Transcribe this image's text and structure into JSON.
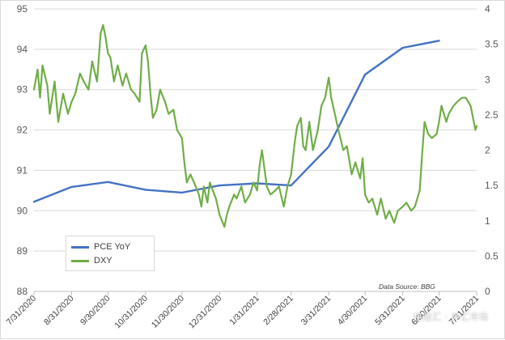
{
  "chart_data": {
    "type": "line",
    "title": "",
    "xlabel": "",
    "ylabel_left": "",
    "ylabel_right": "",
    "x_tick_labels": [
      "7/31/2020",
      "8/31/2020",
      "9/30/2020",
      "10/31/2020",
      "11/30/2020",
      "12/31/2020",
      "1/31/2021",
      "2/28/2021",
      "3/31/2021",
      "4/30/2021",
      "5/31/2021",
      "6/30/2021",
      "7/31/2021"
    ],
    "y_left": {
      "min": 88,
      "max": 95,
      "ticks": [
        "88",
        "89",
        "90",
        "91",
        "92",
        "93",
        "94",
        "95"
      ]
    },
    "y_right": {
      "min": 0,
      "max": 4,
      "ticks": [
        "0",
        "0.5",
        "1",
        "1.5",
        "2",
        "2.5",
        "3",
        "3.5",
        "4"
      ]
    },
    "grid": "horizontal",
    "legend_position": "bottom-left",
    "series": [
      {
        "name": "PCE YoY",
        "axis": "right",
        "color": "#4472c4",
        "points": [
          [
            "7/31/2020",
            1.27
          ],
          [
            "8/31/2020",
            1.48
          ],
          [
            "9/30/2020",
            1.55
          ],
          [
            "10/31/2020",
            1.44
          ],
          [
            "11/30/2020",
            1.4
          ],
          [
            "12/31/2020",
            1.5
          ],
          [
            "1/31/2021",
            1.53
          ],
          [
            "2/28/2021",
            1.5
          ],
          [
            "3/31/2021",
            2.05
          ],
          [
            "4/30/2021",
            3.07
          ],
          [
            "5/31/2021",
            3.45
          ],
          [
            "6/30/2021",
            3.55
          ]
        ]
      },
      {
        "name": "DXY",
        "axis": "left",
        "color": "#70ad47",
        "points": [
          [
            "7/31/2020",
            93.0
          ],
          [
            "8/3/2020",
            93.5
          ],
          [
            "8/5/2020",
            92.8
          ],
          [
            "8/7/2020",
            93.6
          ],
          [
            "8/11/2020",
            93.1
          ],
          [
            "8/13/2020",
            92.4
          ],
          [
            "8/17/2020",
            93.2
          ],
          [
            "8/20/2020",
            92.2
          ],
          [
            "8/24/2020",
            92.9
          ],
          [
            "8/28/2020",
            92.4
          ],
          [
            "8/31/2020",
            92.7
          ],
          [
            "9/3/2020",
            92.9
          ],
          [
            "9/7/2020",
            93.4
          ],
          [
            "9/10/2020",
            93.2
          ],
          [
            "9/14/2020",
            93.0
          ],
          [
            "9/17/2020",
            93.7
          ],
          [
            "9/21/2020",
            93.2
          ],
          [
            "9/24/2020",
            94.4
          ],
          [
            "9/26/2020",
            94.6
          ],
          [
            "9/28/2020",
            94.3
          ],
          [
            "9/30/2020",
            93.9
          ],
          [
            "10/2/2020",
            93.8
          ],
          [
            "10/5/2020",
            93.2
          ],
          [
            "10/8/2020",
            93.6
          ],
          [
            "10/12/2020",
            93.1
          ],
          [
            "10/15/2020",
            93.4
          ],
          [
            "10/19/2020",
            93.0
          ],
          [
            "10/22/2020",
            92.9
          ],
          [
            "10/26/2020",
            92.7
          ],
          [
            "10/28/2020",
            93.9
          ],
          [
            "10/31/2020",
            94.1
          ],
          [
            "11/2/2020",
            93.7
          ],
          [
            "11/4/2020",
            92.9
          ],
          [
            "11/6/2020",
            92.3
          ],
          [
            "11/9/2020",
            92.5
          ],
          [
            "11/12/2020",
            93.0
          ],
          [
            "11/16/2020",
            92.7
          ],
          [
            "11/19/2020",
            92.4
          ],
          [
            "11/23/2020",
            92.5
          ],
          [
            "11/26/2020",
            92.0
          ],
          [
            "11/30/2020",
            91.8
          ],
          [
            "12/2/2020",
            91.2
          ],
          [
            "12/4/2020",
            90.7
          ],
          [
            "12/7/2020",
            90.9
          ],
          [
            "12/10/2020",
            90.7
          ],
          [
            "12/14/2020",
            90.4
          ],
          [
            "12/16/2020",
            90.1
          ],
          [
            "12/18/2020",
            90.6
          ],
          [
            "12/21/2020",
            90.2
          ],
          [
            "12/23/2020",
            90.7
          ],
          [
            "12/28/2020",
            90.3
          ],
          [
            "12/31/2020",
            89.9
          ],
          [
            "1/4/2021",
            89.6
          ],
          [
            "1/6/2021",
            89.9
          ],
          [
            "1/8/2021",
            90.1
          ],
          [
            "1/12/2021",
            90.4
          ],
          [
            "1/14/2021",
            90.3
          ],
          [
            "1/18/2021",
            90.6
          ],
          [
            "1/21/2021",
            90.2
          ],
          [
            "1/25/2021",
            90.4
          ],
          [
            "1/28/2021",
            90.7
          ],
          [
            "1/31/2021",
            90.5
          ],
          [
            "2/2/2021",
            91.1
          ],
          [
            "2/4/2021",
            91.5
          ],
          [
            "2/8/2021",
            90.6
          ],
          [
            "2/11/2021",
            90.4
          ],
          [
            "2/15/2021",
            90.5
          ],
          [
            "2/18/2021",
            90.6
          ],
          [
            "2/22/2021",
            90.1
          ],
          [
            "2/25/2021",
            90.6
          ],
          [
            "2/28/2021",
            90.9
          ],
          [
            "3/3/2021",
            91.7
          ],
          [
            "3/5/2021",
            92.1
          ],
          [
            "3/8/2021",
            92.3
          ],
          [
            "3/10/2021",
            91.6
          ],
          [
            "3/12/2021",
            91.5
          ],
          [
            "3/15/2021",
            92.2
          ],
          [
            "3/18/2021",
            91.5
          ],
          [
            "3/22/2021",
            92.0
          ],
          [
            "3/25/2021",
            92.6
          ],
          [
            "3/28/2021",
            92.8
          ],
          [
            "3/31/2021",
            93.3
          ],
          [
            "4/2/2021",
            92.8
          ],
          [
            "4/5/2021",
            92.4
          ],
          [
            "4/8/2021",
            92.0
          ],
          [
            "4/12/2021",
            91.5
          ],
          [
            "4/15/2021",
            91.6
          ],
          [
            "4/19/2021",
            90.9
          ],
          [
            "4/22/2021",
            91.2
          ],
          [
            "4/26/2021",
            90.8
          ],
          [
            "4/28/2021",
            91.3
          ],
          [
            "4/30/2021",
            90.4
          ],
          [
            "5/3/2021",
            90.2
          ],
          [
            "5/6/2021",
            90.3
          ],
          [
            "5/10/2021",
            89.9
          ],
          [
            "5/13/2021",
            90.3
          ],
          [
            "5/17/2021",
            89.8
          ],
          [
            "5/20/2021",
            90.0
          ],
          [
            "5/24/2021",
            89.7
          ],
          [
            "5/27/2021",
            90.0
          ],
          [
            "5/31/2021",
            90.1
          ],
          [
            "6/3/2021",
            90.2
          ],
          [
            "6/7/2021",
            90.0
          ],
          [
            "6/10/2021",
            90.1
          ],
          [
            "6/14/2021",
            90.5
          ],
          [
            "6/16/2021",
            91.4
          ],
          [
            "6/18/2021",
            92.2
          ],
          [
            "6/21/2021",
            91.9
          ],
          [
            "6/24/2021",
            91.8
          ],
          [
            "6/28/2021",
            91.9
          ],
          [
            "6/30/2021",
            92.2
          ],
          [
            "7/2/2021",
            92.6
          ],
          [
            "7/6/2021",
            92.2
          ],
          [
            "7/8/2021",
            92.4
          ],
          [
            "7/12/2021",
            92.6
          ],
          [
            "7/15/2021",
            92.7
          ],
          [
            "7/19/2021",
            92.8
          ],
          [
            "7/22/2021",
            92.8
          ],
          [
            "7/26/2021",
            92.6
          ],
          [
            "7/28/2021",
            92.3
          ],
          [
            "7/30/2021",
            92.0
          ],
          [
            "7/31/2021",
            92.1
          ]
        ]
      }
    ],
    "annotation": "Data Source: BBG"
  },
  "watermark": "格隆汇 · 外汇市场"
}
